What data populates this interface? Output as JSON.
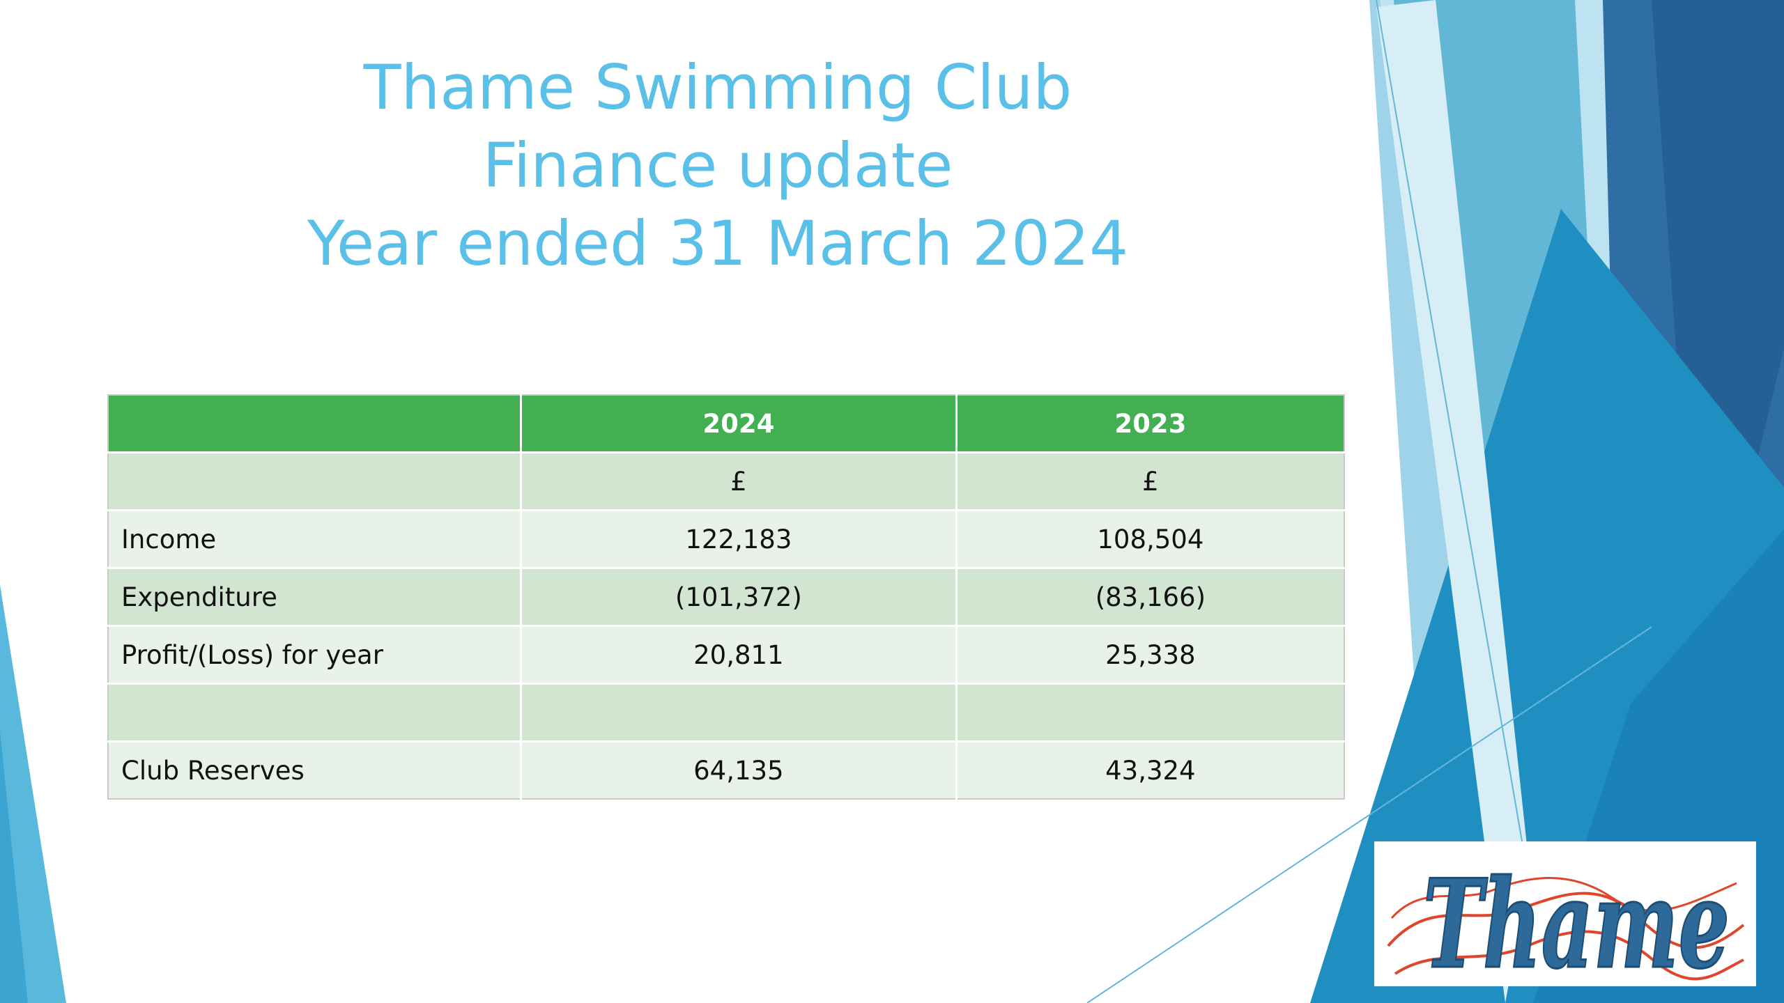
{
  "slide": {
    "title_lines": [
      "Thame Swimming Club",
      "Finance update",
      "Year ended 31 March 2024"
    ],
    "colors": {
      "title": "#5bc0e8",
      "table_header": "#42b052",
      "table_band": "#d1e5d1",
      "table_light": "#e9f2e9"
    }
  },
  "table": {
    "headers": [
      "",
      "2024",
      "2023"
    ],
    "rows": [
      [
        "",
        "£",
        "£"
      ],
      [
        "Income",
        "122,183",
        "108,504"
      ],
      [
        "Expenditure",
        "(101,372)",
        "(83,166)"
      ],
      [
        "Profit/(Loss) for year",
        "20,811",
        "25,338"
      ],
      [
        "",
        "",
        ""
      ],
      [
        "Club Reserves",
        "64,135",
        "43,324"
      ]
    ]
  },
  "logo": {
    "text": "Thame"
  }
}
